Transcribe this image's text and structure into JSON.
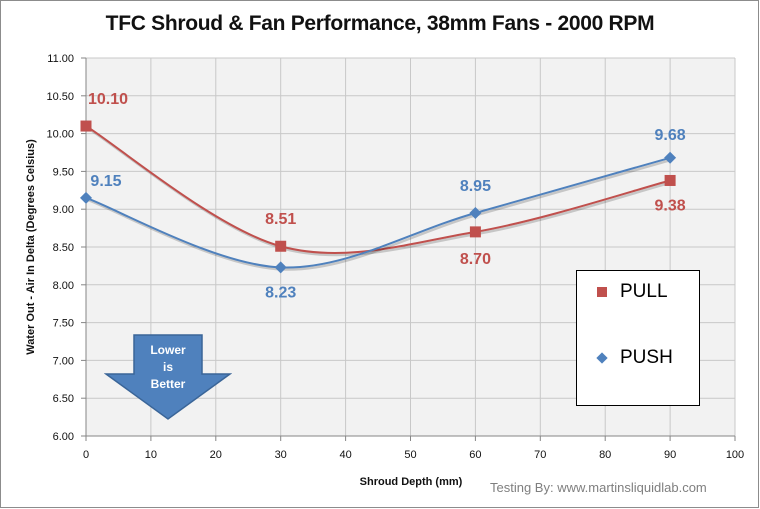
{
  "chart_data": {
    "type": "line",
    "title": "TFC Shroud & Fan Performance, 38mm Fans - 2000 RPM",
    "xlabel": "Shroud Depth (mm)",
    "ylabel": "Water Out - Air In Delta (Degrees Celsius)",
    "xlim": [
      0,
      100
    ],
    "ylim": [
      6.0,
      11.0
    ],
    "xticks": [
      "0",
      "10",
      "20",
      "30",
      "40",
      "50",
      "60",
      "70",
      "80",
      "90",
      "100"
    ],
    "yticks": [
      "6.00",
      "6.50",
      "7.00",
      "7.50",
      "8.00",
      "8.50",
      "9.00",
      "9.50",
      "10.00",
      "10.50",
      "11.00"
    ],
    "grid": true,
    "smoothed": true,
    "legend_position": "right",
    "series": [
      {
        "name": "PULL",
        "color": "#c0504d",
        "marker": "square",
        "x": [
          0,
          30,
          60,
          90
        ],
        "y": [
          10.1,
          8.51,
          8.7,
          9.38
        ],
        "labels": [
          "10.10",
          "8.51",
          "8.70",
          "9.38"
        ]
      },
      {
        "name": "PUSH",
        "color": "#4f81bd",
        "marker": "diamond",
        "x": [
          0,
          30,
          60,
          90
        ],
        "y": [
          9.15,
          8.23,
          8.95,
          9.68
        ],
        "labels": [
          "9.15",
          "8.23",
          "8.95",
          "9.68"
        ]
      }
    ],
    "annotations": [
      {
        "text": "Lower is Better",
        "type": "down-arrow"
      },
      {
        "text": "Testing By: www.martinsliquidlab.com",
        "type": "credit"
      }
    ]
  },
  "annotation": {
    "arrow_line1": "Lower",
    "arrow_line2": "is",
    "arrow_line3": "Better",
    "credit": "Testing By: www.martinsliquidlab.com"
  }
}
